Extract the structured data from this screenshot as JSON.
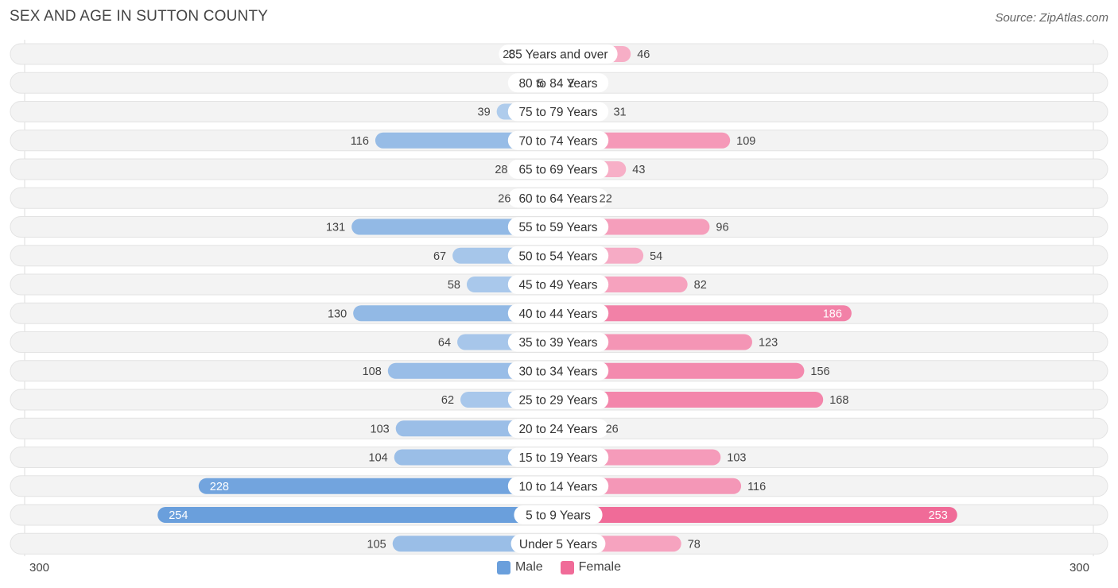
{
  "header": {
    "title": "SEX AND AGE IN SUTTON COUNTY",
    "source": "Source: ZipAtlas.com"
  },
  "chart_data": {
    "type": "bar",
    "orientation": "horizontal-diverging",
    "title": "SEX AND AGE IN SUTTON COUNTY",
    "categories": [
      "85 Years and over",
      "80 to 84 Years",
      "75 to 79 Years",
      "70 to 74 Years",
      "65 to 69 Years",
      "60 to 64 Years",
      "55 to 59 Years",
      "50 to 54 Years",
      "45 to 49 Years",
      "40 to 44 Years",
      "35 to 39 Years",
      "30 to 34 Years",
      "25 to 29 Years",
      "20 to 24 Years",
      "15 to 19 Years",
      "10 to 14 Years",
      "5 to 9 Years",
      "Under 5 Years"
    ],
    "series": [
      {
        "name": "Male",
        "color": "#6a9fdc",
        "values": [
          23,
          5,
          39,
          116,
          28,
          26,
          131,
          67,
          58,
          130,
          64,
          108,
          62,
          103,
          104,
          228,
          254,
          105
        ]
      },
      {
        "name": "Female",
        "color": "#f06b98",
        "values": [
          46,
          2,
          31,
          109,
          43,
          22,
          96,
          54,
          82,
          186,
          123,
          156,
          168,
          26,
          103,
          116,
          253,
          78
        ]
      }
    ],
    "axis": {
      "left_label": "300",
      "right_label": "300",
      "max": 300
    },
    "legend_position": "bottom-center"
  }
}
